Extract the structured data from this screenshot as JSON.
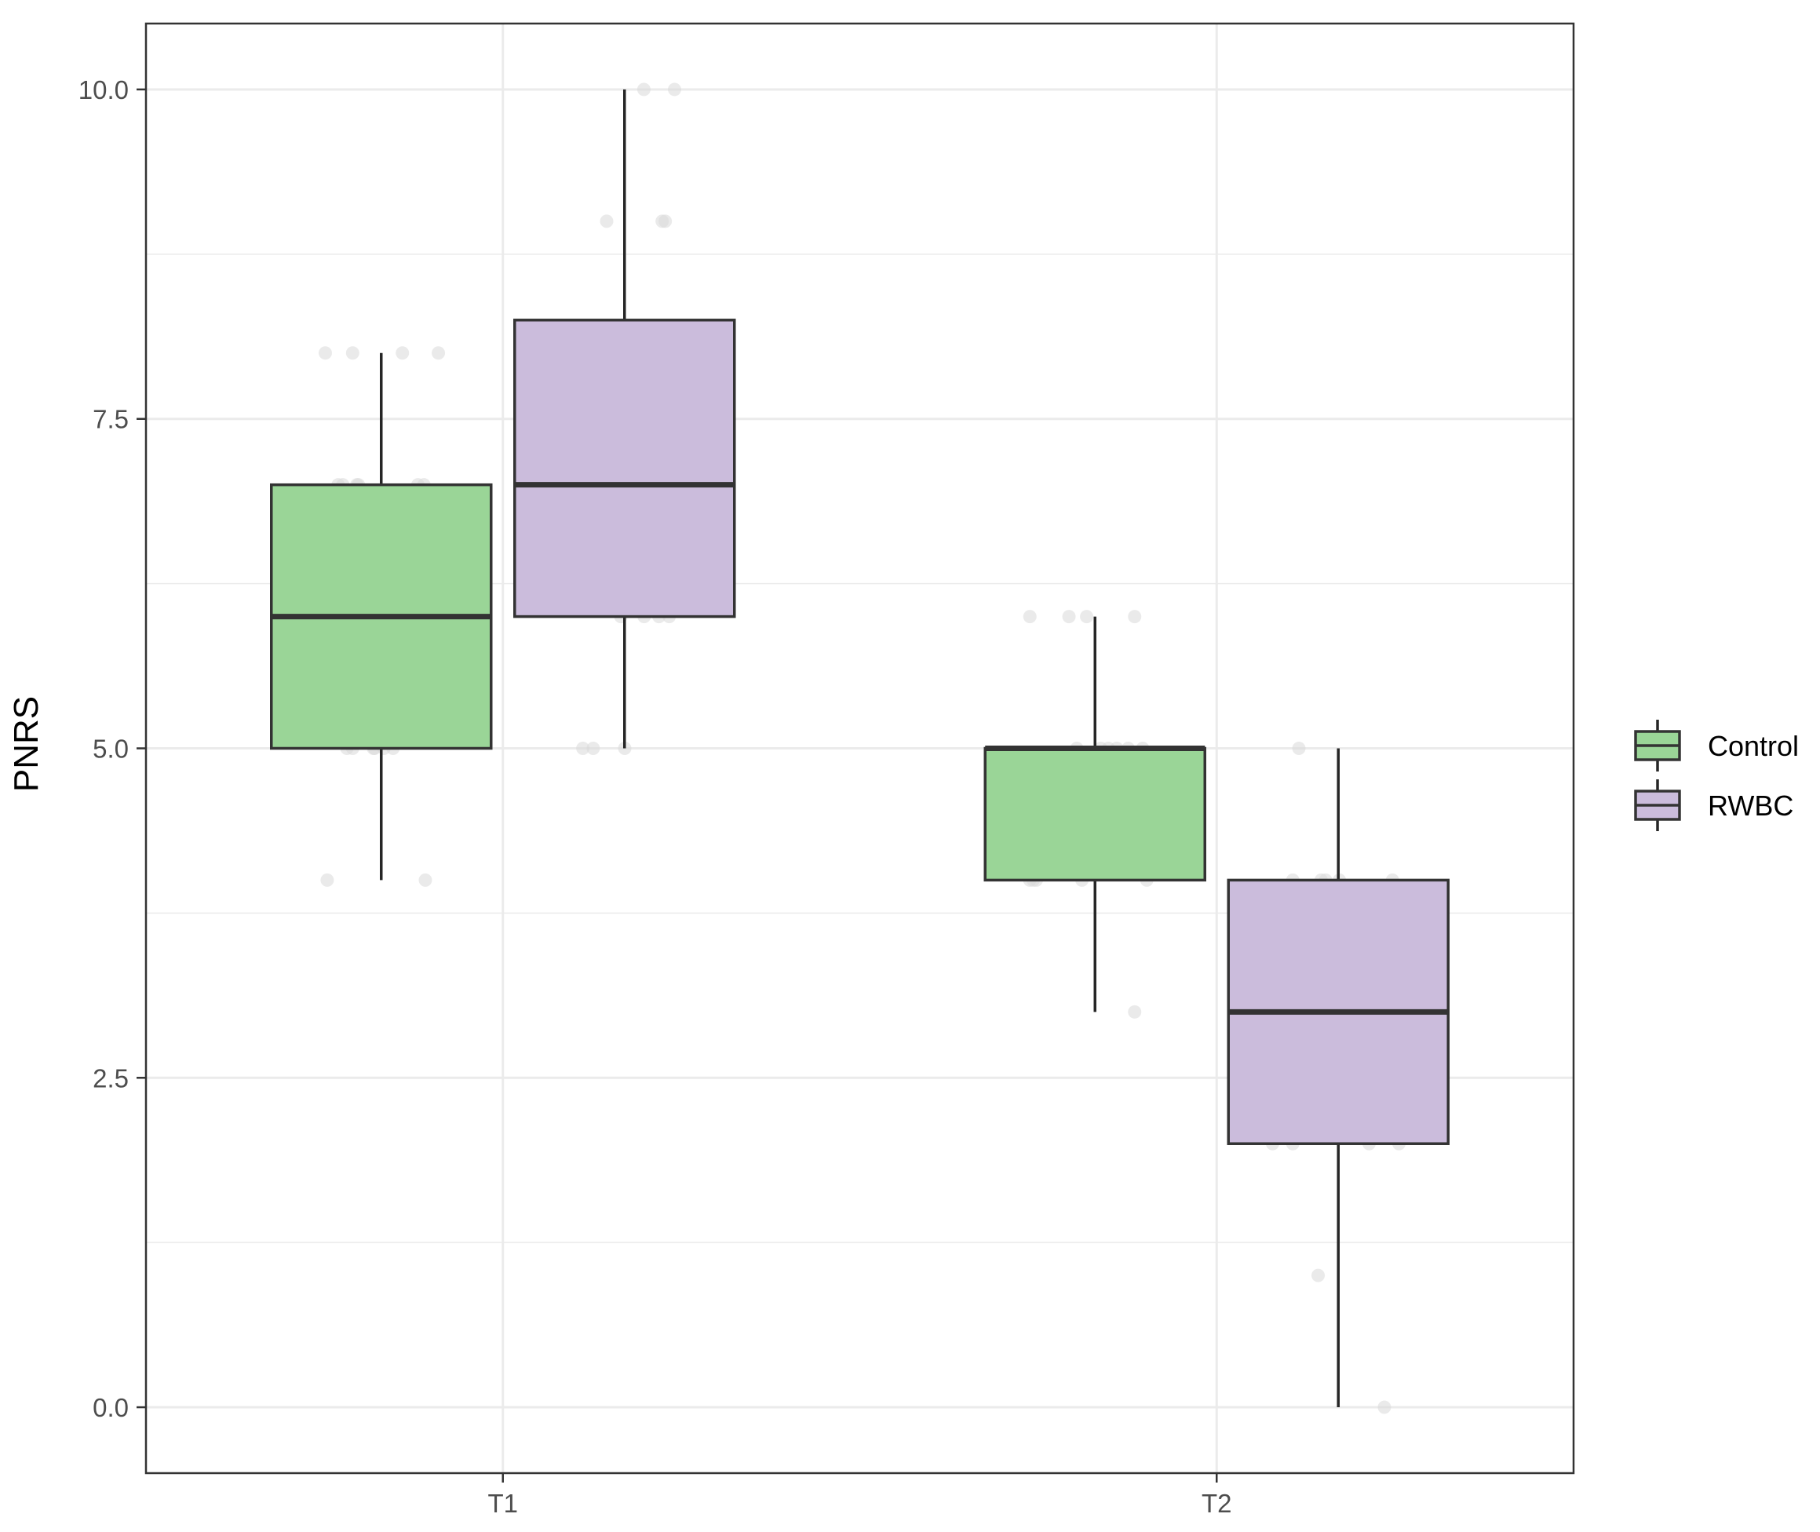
{
  "chart_data": {
    "type": "boxplot",
    "title": "",
    "xlabel": "",
    "ylabel": "PNRS",
    "categories": [
      "T1",
      "T2"
    ],
    "ylim": [
      -0.5,
      10.5
    ],
    "yticks": [
      0.0,
      2.5,
      5.0,
      7.5,
      10.0
    ],
    "ytick_labels": [
      "0.0",
      "2.5",
      "5.0",
      "7.5",
      "10.0"
    ],
    "grid": true,
    "legend_position": "right",
    "series": [
      {
        "name": "Control",
        "color": "#9ad597",
        "boxes": [
          {
            "category": "T1",
            "min": 4,
            "q1": 5,
            "median": 6,
            "q3": 7,
            "max": 8
          },
          {
            "category": "T2",
            "min": 3,
            "q1": 4,
            "median": 5,
            "q3": 5,
            "max": 6
          }
        ],
        "points": [
          {
            "category": "T1",
            "values": [
              8,
              8,
              8,
              8,
              7,
              7,
              7,
              7,
              7,
              7,
              6,
              6,
              6,
              5,
              5,
              5,
              5,
              5,
              5,
              4,
              4
            ]
          },
          {
            "category": "T2",
            "values": [
              6,
              6,
              6,
              6,
              5,
              5,
              5,
              5,
              5,
              5,
              4,
              4,
              4,
              4,
              4,
              3
            ]
          }
        ]
      },
      {
        "name": "RWBC",
        "color": "#cbbcdc",
        "boxes": [
          {
            "category": "T1",
            "min": 5,
            "q1": 6,
            "median": 7,
            "q3": 8.25,
            "max": 10
          },
          {
            "category": "T2",
            "min": 0,
            "q1": 2,
            "median": 3,
            "q3": 4,
            "max": 5
          }
        ],
        "points": [
          {
            "category": "T1",
            "values": [
              10,
              10,
              9,
              9,
              9,
              8,
              8,
              8,
              7,
              7,
              6,
              6,
              6,
              6,
              5,
              5,
              5
            ]
          },
          {
            "category": "T2",
            "values": [
              5,
              4,
              4,
              4,
              4,
              4,
              3,
              3,
              2,
              2,
              2,
              2,
              1,
              0
            ]
          }
        ]
      }
    ]
  }
}
